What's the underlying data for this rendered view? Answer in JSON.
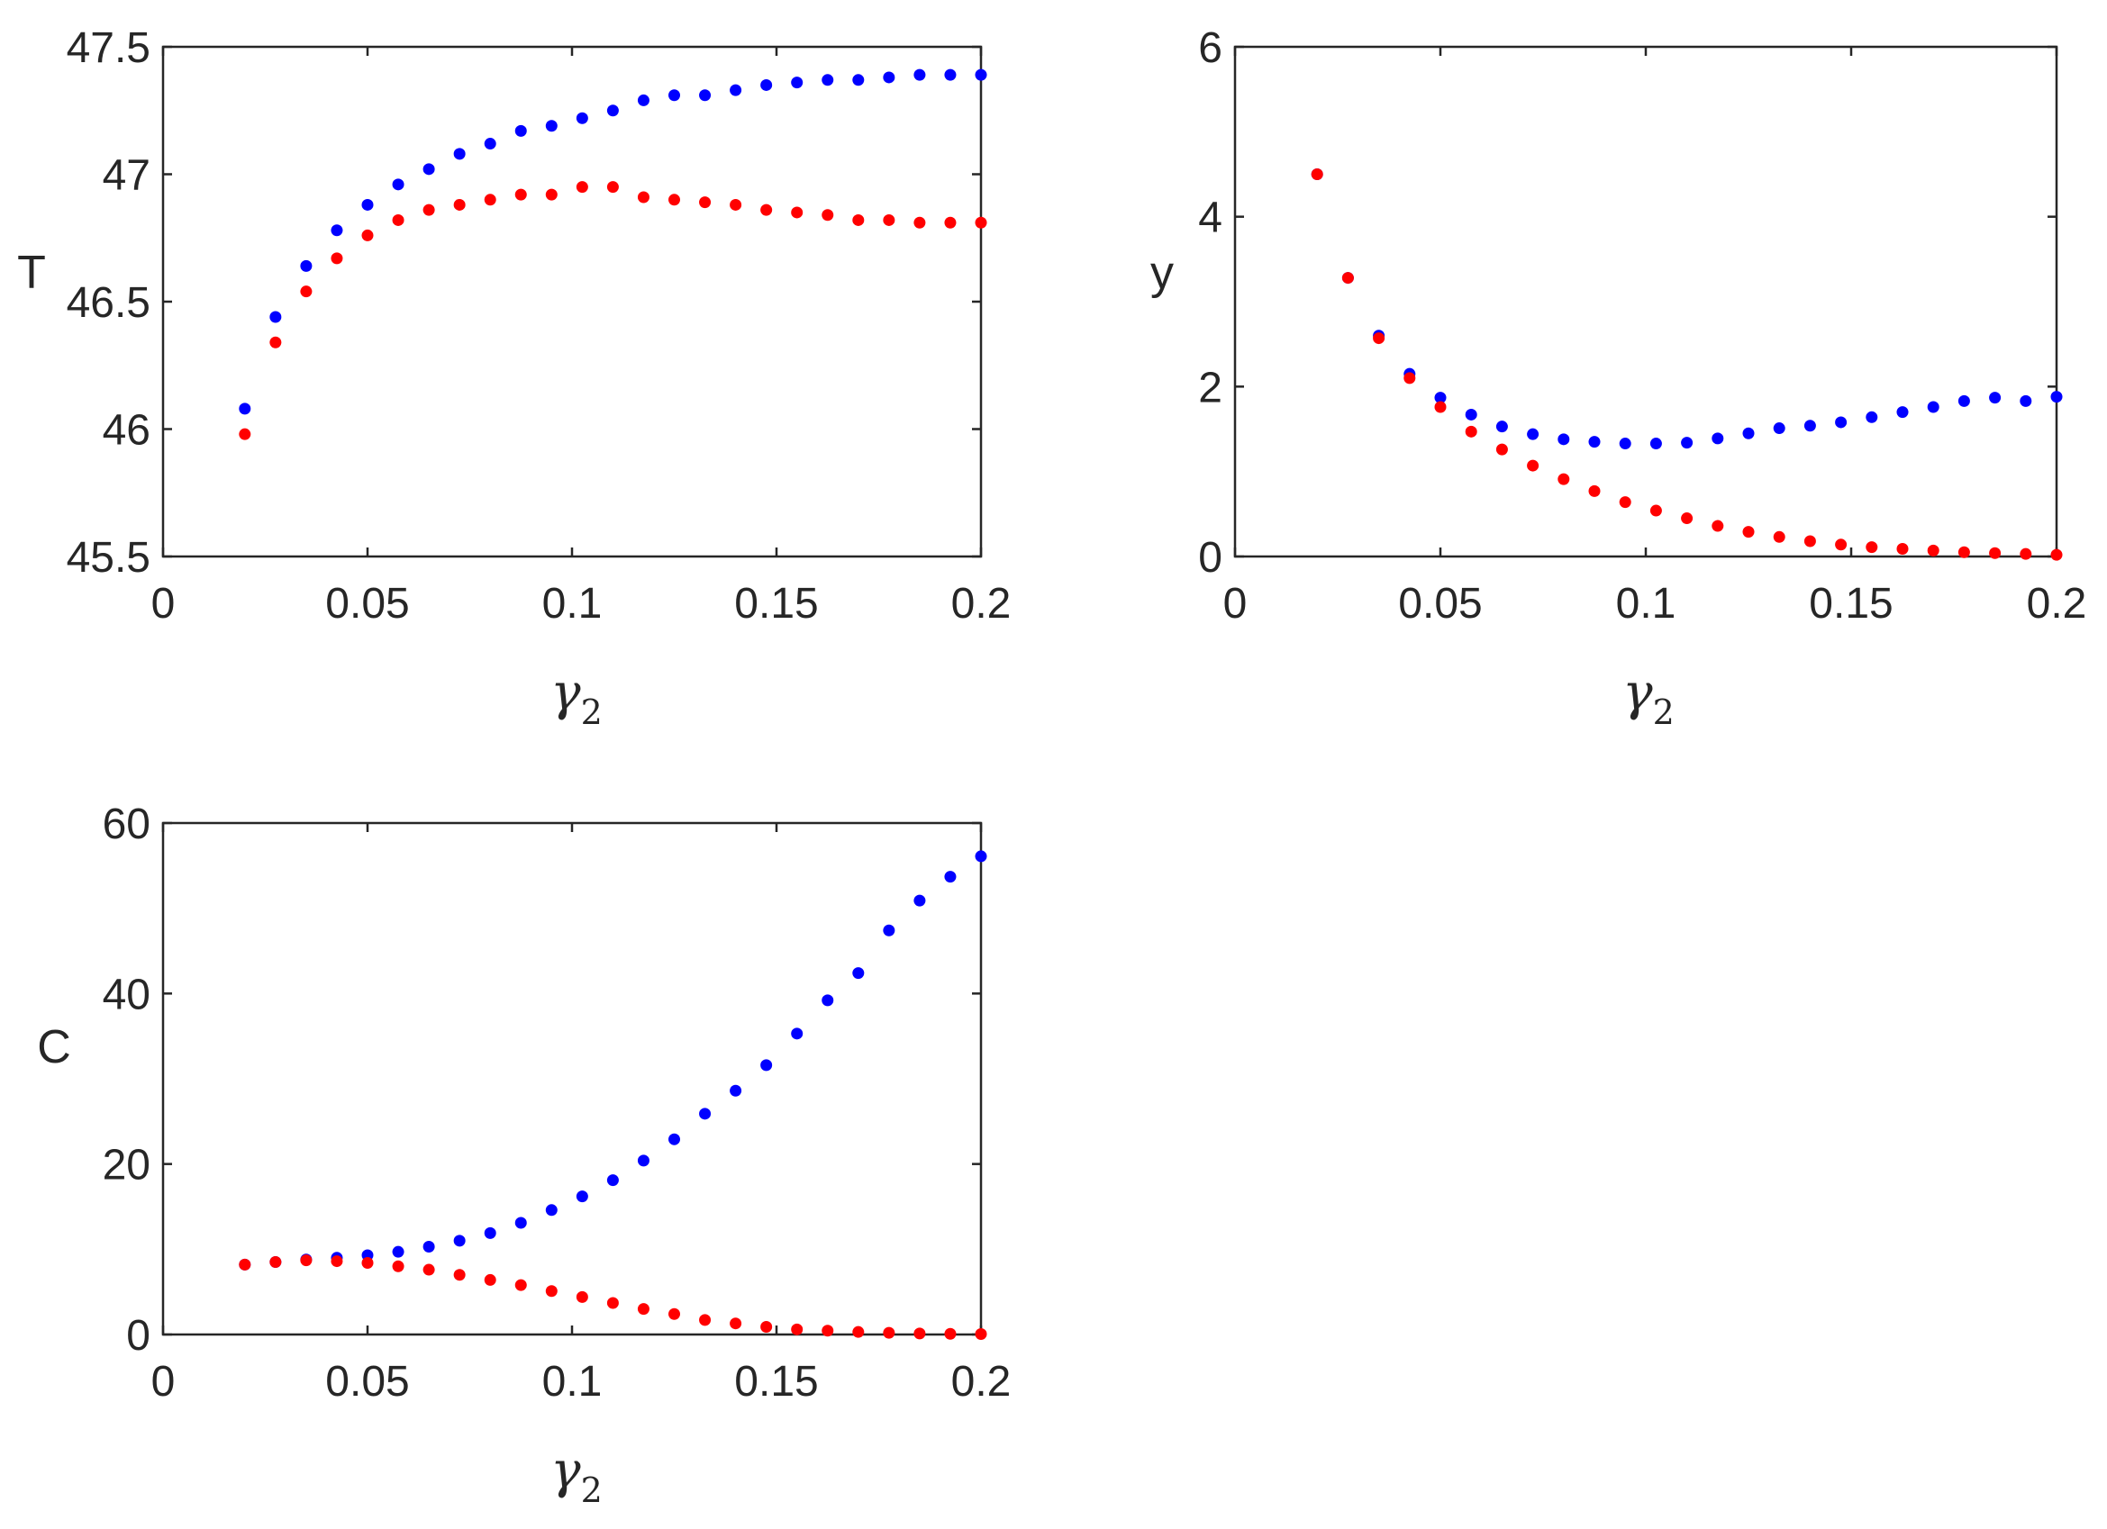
{
  "chart_data": [
    {
      "type": "scatter",
      "id": "T",
      "xlabel": "γ",
      "xlabel_subscript": "2",
      "ylabel": "T",
      "xlim": [
        0,
        0.2
      ],
      "ylim": [
        45.5,
        47.5
      ],
      "xticks": [
        0,
        0.05,
        0.1,
        0.15,
        0.2
      ],
      "xtick_labels": [
        "0",
        "0.05",
        "0.1",
        "0.15",
        "0.2"
      ],
      "yticks": [
        45.5,
        46,
        46.5,
        47,
        47.5
      ],
      "ytick_labels": [
        "45.5",
        "46",
        "46.5",
        "47",
        "47.5"
      ],
      "grid": false,
      "x": [
        0.02,
        0.0275,
        0.035,
        0.0425,
        0.05,
        0.0575,
        0.065,
        0.0725,
        0.08,
        0.0875,
        0.095,
        0.1025,
        0.11,
        0.1175,
        0.125,
        0.1325,
        0.14,
        0.1475,
        0.155,
        0.1625,
        0.17,
        0.1775,
        0.185,
        0.1925,
        0.2
      ],
      "series": [
        {
          "color": "#0000ff",
          "values": [
            46.08,
            46.44,
            46.64,
            46.78,
            46.88,
            46.96,
            47.02,
            47.08,
            47.12,
            47.17,
            47.19,
            47.22,
            47.25,
            47.29,
            47.31,
            47.31,
            47.33,
            47.35,
            47.36,
            47.37,
            47.37,
            47.38,
            47.39,
            47.39,
            47.39
          ]
        },
        {
          "color": "#ff0000",
          "values": [
            45.98,
            46.34,
            46.54,
            46.67,
            46.76,
            46.82,
            46.86,
            46.88,
            46.9,
            46.92,
            46.92,
            46.95,
            46.95,
            46.91,
            46.9,
            46.89,
            46.88,
            46.86,
            46.85,
            46.84,
            46.82,
            46.82,
            46.81,
            46.81,
            46.81
          ]
        }
      ]
    },
    {
      "type": "scatter",
      "id": "y",
      "xlabel": "γ",
      "xlabel_subscript": "2",
      "ylabel": "y",
      "xlim": [
        0,
        0.2
      ],
      "ylim": [
        0,
        6
      ],
      "xticks": [
        0,
        0.05,
        0.1,
        0.15,
        0.2
      ],
      "xtick_labels": [
        "0",
        "0.05",
        "0.1",
        "0.15",
        "0.2"
      ],
      "yticks": [
        0,
        2,
        4,
        6
      ],
      "ytick_labels": [
        "0",
        "2",
        "4",
        "6"
      ],
      "grid": false,
      "x": [
        0.02,
        0.0275,
        0.035,
        0.0425,
        0.05,
        0.0575,
        0.065,
        0.0725,
        0.08,
        0.0875,
        0.095,
        0.1025,
        0.11,
        0.1175,
        0.125,
        0.1325,
        0.14,
        0.1475,
        0.155,
        0.1625,
        0.17,
        0.1775,
        0.185,
        0.1925,
        0.2
      ],
      "series": [
        {
          "color": "#0000ff",
          "values": [
            4.5,
            3.28,
            2.6,
            2.15,
            1.87,
            1.67,
            1.53,
            1.44,
            1.38,
            1.35,
            1.33,
            1.33,
            1.34,
            1.39,
            1.45,
            1.51,
            1.54,
            1.58,
            1.64,
            1.7,
            1.76,
            1.83,
            1.87,
            1.83,
            1.88
          ]
        },
        {
          "color": "#ff0000",
          "values": [
            4.5,
            3.28,
            2.57,
            2.1,
            1.76,
            1.47,
            1.26,
            1.07,
            0.91,
            0.77,
            0.64,
            0.54,
            0.45,
            0.36,
            0.29,
            0.23,
            0.18,
            0.14,
            0.11,
            0.09,
            0.07,
            0.05,
            0.04,
            0.03,
            0.02
          ]
        }
      ]
    },
    {
      "type": "scatter",
      "id": "C",
      "xlabel": "γ",
      "xlabel_subscript": "2",
      "ylabel": "C",
      "xlim": [
        0,
        0.2
      ],
      "ylim": [
        0,
        60
      ],
      "xticks": [
        0,
        0.05,
        0.1,
        0.15,
        0.2
      ],
      "xtick_labels": [
        "0",
        "0.05",
        "0.1",
        "0.15",
        "0.2"
      ],
      "yticks": [
        0,
        20,
        40,
        60
      ],
      "ytick_labels": [
        "0",
        "20",
        "40",
        "60"
      ],
      "grid": false,
      "x": [
        0.02,
        0.0275,
        0.035,
        0.0425,
        0.05,
        0.0575,
        0.065,
        0.0725,
        0.08,
        0.0875,
        0.095,
        0.1025,
        0.11,
        0.1175,
        0.125,
        0.1325,
        0.14,
        0.1475,
        0.155,
        0.1625,
        0.17,
        0.1775,
        0.185,
        0.1925,
        0.2
      ],
      "series": [
        {
          "color": "#0000ff",
          "values": [
            8.2,
            8.5,
            8.8,
            9.0,
            9.3,
            9.7,
            10.3,
            11.0,
            11.9,
            13.1,
            14.6,
            16.2,
            18.1,
            20.4,
            22.9,
            25.9,
            28.6,
            31.6,
            35.3,
            39.2,
            42.4,
            47.4,
            50.9,
            53.7,
            56.1
          ]
        },
        {
          "color": "#ff0000",
          "values": [
            8.2,
            8.5,
            8.7,
            8.6,
            8.4,
            8.0,
            7.6,
            7.0,
            6.4,
            5.8,
            5.1,
            4.4,
            3.7,
            3.0,
            2.4,
            1.7,
            1.3,
            0.9,
            0.6,
            0.45,
            0.3,
            0.2,
            0.12,
            0.08,
            0.05
          ]
        }
      ]
    }
  ]
}
